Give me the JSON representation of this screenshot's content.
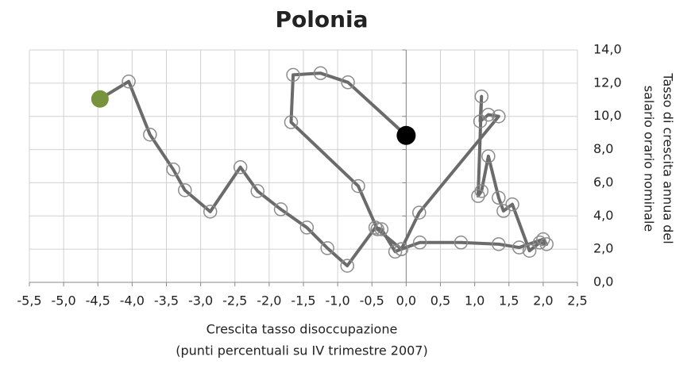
{
  "chart_data": {
    "type": "scatter-line",
    "title": "Polonia",
    "xlabel": [
      "Crescita tasso disoccupazione",
      "(punti percentuali su IV trimestre 2007)"
    ],
    "ylabel": [
      "Tasso di crescita annua del",
      "salario orario nominale"
    ],
    "xlim": [
      -5.5,
      2.5
    ],
    "ylim": [
      0,
      14
    ],
    "xticks": [
      {
        "value": -5.5,
        "label": "-5,5"
      },
      {
        "value": -5,
        "label": "-5,0"
      },
      {
        "value": -4.5,
        "label": "-4,5"
      },
      {
        "value": -4,
        "label": "-4,0"
      },
      {
        "value": -3.5,
        "label": "-3,5"
      },
      {
        "value": -3,
        "label": "-3,0"
      },
      {
        "value": -2.5,
        "label": "-2,5"
      },
      {
        "value": -2,
        "label": "-2,0"
      },
      {
        "value": -1.5,
        "label": "-1,5"
      },
      {
        "value": -1,
        "label": "-1,0"
      },
      {
        "value": -0.5,
        "label": "-0,5"
      },
      {
        "value": 0,
        "label": "0,0"
      },
      {
        "value": 0.5,
        "label": "0,5"
      },
      {
        "value": 1,
        "label": "1,0"
      },
      {
        "value": 1.5,
        "label": "1,5"
      },
      {
        "value": 2,
        "label": "2,0"
      },
      {
        "value": 2.5,
        "label": "2,5"
      }
    ],
    "yticks": [
      {
        "value": 0,
        "label": "0,0"
      },
      {
        "value": 2,
        "label": "2,0"
      },
      {
        "value": 4,
        "label": "4,0"
      },
      {
        "value": 6,
        "label": "6,0"
      },
      {
        "value": 8,
        "label": "8,0"
      },
      {
        "value": 10,
        "label": "10,0"
      },
      {
        "value": 12,
        "label": "12,0"
      },
      {
        "value": 14,
        "label": "14,0"
      }
    ],
    "grid": true,
    "series": [
      {
        "color": "#6b6b6b",
        "marker_color": "#8c8c8c",
        "start_color": "#77933c",
        "end_color": "#000000",
        "x": [
          -4.47,
          -4.05,
          -3.74,
          -3.4,
          -3.23,
          -2.86,
          -2.42,
          -2.17,
          -1.83,
          -1.45,
          -1.15,
          -0.86,
          -0.45,
          -0.36,
          -0.16,
          -0.07,
          0.19,
          1.35,
          1.2,
          1.08,
          1.1,
          1.05,
          1.1,
          1.2,
          1.35,
          1.42,
          1.55,
          1.8,
          1.95,
          2.05,
          2.0,
          1.65,
          1.35,
          0.8,
          0.2,
          -0.07,
          -0.42,
          -0.7,
          -1.68,
          -1.65,
          -1.25,
          -0.85,
          0
        ],
        "values": [
          11.05,
          12.1,
          8.9,
          6.8,
          5.55,
          4.26,
          6.94,
          5.5,
          4.4,
          3.3,
          2.06,
          1.0,
          3.3,
          3.2,
          1.85,
          2.0,
          4.2,
          10.0,
          10.1,
          9.7,
          11.2,
          5.2,
          5.5,
          7.6,
          5.1,
          4.3,
          4.7,
          1.9,
          2.4,
          2.3,
          2.6,
          2.1,
          2.3,
          2.4,
          2.4,
          2.0,
          3.2,
          5.8,
          9.65,
          12.5,
          12.6,
          12.05,
          8.85
        ]
      }
    ]
  }
}
